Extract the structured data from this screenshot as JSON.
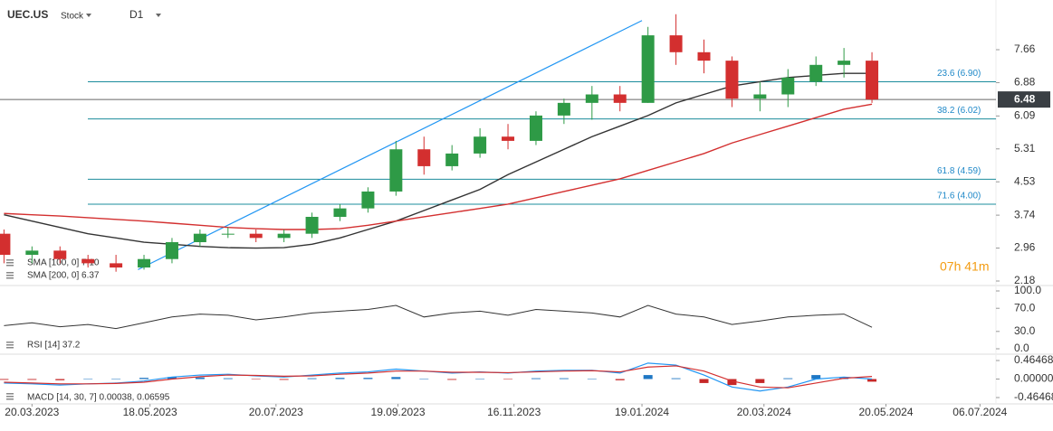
{
  "header": {
    "symbol": "UEC.US",
    "kind": "Stock",
    "timeframe": "D1"
  },
  "chart_data": [
    {
      "type": "candlestick",
      "x": [
        "06.03.2023",
        "20.03.2023",
        "03.04.2023",
        "17.04.2023",
        "01.05.2023",
        "15.05.2023",
        "29.05.2023",
        "12.06.2023",
        "26.06.2023",
        "10.07.2023",
        "24.07.2023",
        "07.08.2023",
        "21.08.2023",
        "04.09.2023",
        "18.09.2023",
        "02.10.2023",
        "16.10.2023",
        "30.10.2023",
        "13.11.2023",
        "27.11.2023",
        "11.12.2023",
        "25.12.2023",
        "08.01.2024",
        "22.01.2024",
        "05.02.2024",
        "19.02.2024",
        "04.03.2024",
        "18.03.2024",
        "01.04.2024",
        "15.04.2024",
        "29.04.2024",
        "13.05.2024"
      ],
      "open": [
        3.3,
        2.8,
        2.9,
        2.7,
        2.6,
        2.5,
        2.7,
        3.1,
        3.3,
        3.3,
        3.2,
        3.3,
        3.7,
        3.9,
        4.3,
        5.3,
        4.9,
        5.2,
        5.6,
        5.5,
        6.1,
        6.4,
        6.6,
        6.4,
        8.0,
        7.6,
        7.4,
        6.5,
        6.6,
        6.9,
        7.3,
        7.4
      ],
      "high": [
        3.4,
        3.0,
        3.0,
        2.8,
        2.8,
        2.8,
        3.2,
        3.4,
        3.45,
        3.4,
        3.4,
        3.8,
        4.0,
        4.4,
        5.5,
        5.6,
        5.4,
        5.8,
        5.9,
        6.2,
        6.5,
        6.8,
        6.8,
        8.2,
        8.5,
        7.9,
        7.5,
        6.9,
        7.2,
        7.5,
        7.7,
        7.6
      ],
      "low": [
        2.6,
        2.6,
        2.6,
        2.5,
        2.4,
        2.45,
        2.6,
        3.0,
        3.2,
        3.1,
        3.1,
        3.2,
        3.6,
        3.8,
        4.2,
        4.7,
        4.8,
        5.1,
        5.3,
        5.4,
        5.9,
        6.0,
        6.2,
        6.4,
        7.3,
        7.1,
        6.3,
        6.2,
        6.3,
        6.8,
        7.0,
        6.4
      ],
      "close": [
        2.8,
        2.9,
        2.7,
        2.6,
        2.5,
        2.7,
        3.1,
        3.3,
        3.3,
        3.2,
        3.3,
        3.7,
        3.9,
        4.3,
        5.3,
        4.9,
        5.2,
        5.6,
        5.5,
        6.1,
        6.4,
        6.6,
        6.4,
        8.0,
        7.6,
        7.4,
        6.5,
        6.6,
        7.0,
        7.3,
        7.4,
        6.48
      ],
      "up_color": "#2e9a46",
      "down_color": "#d32f2f",
      "xlim": [
        "04.03.2023",
        "14.07.2024"
      ],
      "xticks": [
        "20.03.2023",
        "18.05.2023",
        "20.07.2023",
        "19.09.2023",
        "16.11.2023",
        "19.01.2024",
        "20.03.2024",
        "20.05.2024",
        "06.07.2024"
      ],
      "ylim": [
        2.18,
        8.73
      ],
      "yticks": [
        7.66,
        6.88,
        6.09,
        5.31,
        4.53,
        3.74,
        2.96,
        2.18
      ],
      "series": [
        {
          "name": "SMA [100, 0] 7.10",
          "color": "#333333",
          "values": [
            3.75,
            3.6,
            3.45,
            3.3,
            3.2,
            3.1,
            3.05,
            3.0,
            2.97,
            2.96,
            2.97,
            3.05,
            3.2,
            3.4,
            3.6,
            3.85,
            4.1,
            4.35,
            4.7,
            5.0,
            5.3,
            5.6,
            5.85,
            6.1,
            6.4,
            6.6,
            6.8,
            6.9,
            7.0,
            7.05,
            7.1,
            7.1
          ]
        },
        {
          "name": "SMA [200, 0] 6.37",
          "color": "#d32f2f",
          "values": [
            3.78,
            3.75,
            3.72,
            3.68,
            3.64,
            3.6,
            3.55,
            3.5,
            3.45,
            3.42,
            3.4,
            3.4,
            3.42,
            3.5,
            3.6,
            3.7,
            3.8,
            3.9,
            4.0,
            4.15,
            4.3,
            4.45,
            4.6,
            4.8,
            5.0,
            5.2,
            5.45,
            5.65,
            5.85,
            6.05,
            6.25,
            6.37
          ]
        }
      ],
      "levels": [
        {
          "value": 6.9,
          "label": "23.6 (6.90)"
        },
        {
          "value": 6.02,
          "label": "38.2 (6.02)"
        },
        {
          "value": 4.59,
          "label": "61.8 (4.59)"
        },
        {
          "value": 4.0,
          "label": "71.6 (4.00)"
        }
      ],
      "level_color": "#1b8c9c",
      "trendline": {
        "x": [
          "12.05.2023",
          "19.01.2024"
        ],
        "values": [
          2.45,
          8.35
        ],
        "color": "#2196f3"
      },
      "last_price": 6.48,
      "countdown": "07h 41m"
    },
    {
      "type": "line",
      "name": "RSI [14] 37.2",
      "color": "#333333",
      "values": [
        40,
        45,
        38,
        42,
        35,
        45,
        55,
        60,
        58,
        50,
        55,
        62,
        65,
        68,
        75,
        55,
        62,
        65,
        58,
        68,
        65,
        62,
        55,
        75,
        60,
        55,
        42,
        48,
        55,
        58,
        60,
        37.2
      ],
      "ylim": [
        0,
        100
      ],
      "yticks": [
        {
          "value": 100,
          "label": "100.0"
        },
        {
          "value": 70,
          "label": "70.0"
        },
        {
          "value": 30,
          "label": "30.0"
        },
        {
          "value": 0,
          "label": "0.0"
        }
      ]
    },
    {
      "type": "macd",
      "name": "MACD [14, 30, 7] 0.00038, 0.06595",
      "macd": [
        -0.1,
        -0.12,
        -0.15,
        -0.12,
        -0.1,
        -0.05,
        0.05,
        0.1,
        0.12,
        0.08,
        0.05,
        0.1,
        0.15,
        0.18,
        0.25,
        0.2,
        0.15,
        0.18,
        0.15,
        0.2,
        0.22,
        0.22,
        0.15,
        0.4,
        0.35,
        0.1,
        -0.2,
        -0.3,
        -0.2,
        0.0,
        0.05,
        0.00038
      ],
      "signal": [
        -0.08,
        -0.1,
        -0.12,
        -0.12,
        -0.11,
        -0.08,
        0,
        0.06,
        0.1,
        0.09,
        0.07,
        0.08,
        0.12,
        0.15,
        0.2,
        0.2,
        0.17,
        0.17,
        0.16,
        0.18,
        0.2,
        0.21,
        0.18,
        0.3,
        0.33,
        0.2,
        -0.05,
        -0.2,
        -0.22,
        -0.1,
        0.02,
        0.06595
      ],
      "histogram": [
        -0.02,
        -0.02,
        -0.03,
        0,
        0.01,
        0.03,
        0.05,
        0.04,
        0.02,
        -0.01,
        -0.02,
        0.02,
        0.03,
        0.03,
        0.05,
        0,
        -0.02,
        0.01,
        -0.01,
        0.02,
        0.02,
        0.01,
        -0.03,
        0.1,
        0.02,
        -0.1,
        -0.15,
        -0.1,
        0.02,
        0.1,
        0.03,
        -0.066
      ],
      "macd_color": "#2196f3",
      "signal_color": "#d32f2f",
      "pos_color": "#1f77c4",
      "neg_color": "#c62828",
      "ylim": [
        -0.46468,
        0.46468
      ],
      "yticks": [
        0.46468,
        {
          "value": 0,
          "label": "0.00000"
        },
        -0.46468
      ]
    }
  ]
}
